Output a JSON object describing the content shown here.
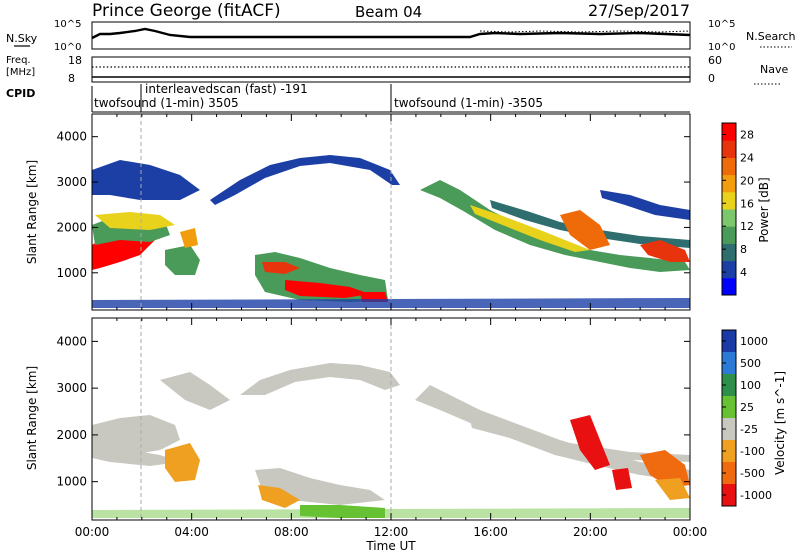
{
  "header": {
    "station": "Prince George (fitACF)",
    "beam": "Beam 04",
    "date": "27/Sep/2017"
  },
  "top_panels": {
    "nsky_label": "N.Sky",
    "nsky_ticks": [
      "10^5",
      "10^0"
    ],
    "nsearch_label": "N.Search",
    "nsearch_ticks": [
      "10^5",
      "10^0"
    ],
    "freq_label": [
      "Freq.",
      "[MHz]"
    ],
    "freq_ticks": [
      "18",
      "8"
    ],
    "nave_label": "Nave",
    "nave_ticks": [
      "60",
      "0"
    ],
    "cpid_label": "CPID",
    "cpid_segments": [
      {
        "text": "twofsound (1-min) 3505"
      },
      {
        "text": "interleavedscan (fast) -191"
      },
      {
        "text": "twofsound (1-min) -3505"
      }
    ]
  },
  "chart_data": [
    {
      "type": "heatmap",
      "panel": "power",
      "xlabel": "",
      "ylabel": "Slant Range [km]",
      "xlim": [
        "00:00",
        "24:00"
      ],
      "ylim": [
        180,
        4500
      ],
      "yticks": [
        1000,
        2000,
        3000,
        4000
      ],
      "colorbar": {
        "label": "Power [dB]",
        "range": [
          0,
          30
        ],
        "ticks": [
          "4",
          "8",
          "12",
          "16",
          "20",
          "24",
          "28"
        ],
        "colors": [
          "#0000ff",
          "#1c3fa6",
          "#2e6e6e",
          "#4a9b59",
          "#7cc66b",
          "#e8d21c",
          "#f29d0e",
          "#ef6b0a",
          "#e8340c",
          "#ff0000"
        ]
      },
      "echo_regions": [
        {
          "name": "morning E-region band",
          "x": [
            0.0,
            2.8
          ],
          "y": [
            1000,
            1700
          ],
          "power_db": 28
        },
        {
          "name": "morning mid band",
          "x": [
            0.0,
            3.5
          ],
          "y": [
            1800,
            2600
          ],
          "power_db": 14
        },
        {
          "name": "midday near-range echoes",
          "x": [
            6.8,
            11.5
          ],
          "y": [
            300,
            1300
          ],
          "power_db": 24
        },
        {
          "name": "afternoon descending bands",
          "x": [
            14.0,
            24.0
          ],
          "y": [
            1000,
            3300
          ],
          "power_db": 12
        }
      ]
    },
    {
      "type": "heatmap",
      "panel": "velocity",
      "xlabel": "Time UT",
      "ylabel": "Slant Range [km]",
      "xlim": [
        "00:00",
        "24:00"
      ],
      "ylim": [
        180,
        4500
      ],
      "xticks": [
        "00:00",
        "04:00",
        "08:00",
        "12:00",
        "16:00",
        "20:00",
        "00:00"
      ],
      "yticks": [
        1000,
        2000,
        3000,
        4000
      ],
      "colorbar": {
        "label": "Velocity [m s^-1]",
        "ticks": [
          "1000",
          "500",
          "100",
          "25",
          "-25",
          "-100",
          "-500",
          "-1000"
        ],
        "colors": [
          "#1a3aa6",
          "#2b7ad6",
          "#2e8f4a",
          "#66c233",
          "#c8c8c0",
          "#f0a020",
          "#f06a10",
          "#e81010"
        ]
      },
      "echo_regions": [
        {
          "name": "ground scatter",
          "x": [
            0.0,
            24.0
          ],
          "y": [
            1000,
            3400
          ],
          "velocity": 0
        },
        {
          "name": "negative velocity patch",
          "x": [
            2.0,
            4.0
          ],
          "y": [
            900,
            1600
          ],
          "velocity": -300
        },
        {
          "name": "late evening echoes",
          "x": [
            18.0,
            24.0
          ],
          "y": [
            500,
            2800
          ],
          "velocity": -800
        }
      ]
    }
  ]
}
